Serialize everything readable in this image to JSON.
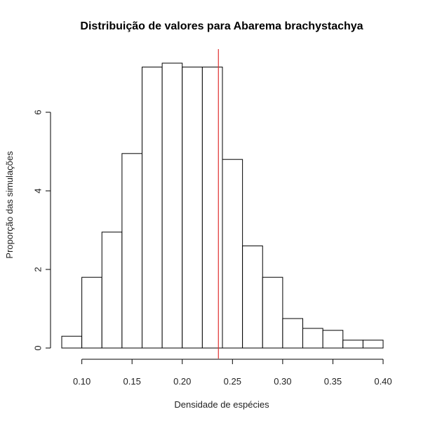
{
  "chart_data": {
    "type": "bar",
    "subtype": "histogram",
    "title": "Distribuição de valores para Abarema brachystachya",
    "xlabel": "Densidade de espécies",
    "ylabel": "Proporção das simulações",
    "bins": [
      {
        "x0": 0.08,
        "x1": 0.1,
        "value": 0.3
      },
      {
        "x0": 0.1,
        "x1": 0.12,
        "value": 1.8
      },
      {
        "x0": 0.12,
        "x1": 0.14,
        "value": 2.95
      },
      {
        "x0": 0.14,
        "x1": 0.16,
        "value": 4.95
      },
      {
        "x0": 0.16,
        "x1": 0.18,
        "value": 7.15
      },
      {
        "x0": 0.18,
        "x1": 0.2,
        "value": 7.25
      },
      {
        "x0": 0.2,
        "x1": 0.22,
        "value": 7.15
      },
      {
        "x0": 0.22,
        "x1": 0.24,
        "value": 7.15
      },
      {
        "x0": 0.24,
        "x1": 0.26,
        "value": 4.8
      },
      {
        "x0": 0.26,
        "x1": 0.28,
        "value": 2.6
      },
      {
        "x0": 0.28,
        "x1": 0.3,
        "value": 1.8
      },
      {
        "x0": 0.3,
        "x1": 0.32,
        "value": 0.75
      },
      {
        "x0": 0.32,
        "x1": 0.34,
        "value": 0.5
      },
      {
        "x0": 0.34,
        "x1": 0.36,
        "value": 0.45
      },
      {
        "x0": 0.36,
        "x1": 0.38,
        "value": 0.2
      },
      {
        "x0": 0.38,
        "x1": 0.4,
        "value": 0.2
      }
    ],
    "reference_line": {
      "x": 0.236,
      "color": "#e03030"
    },
    "xticks": [
      "0.10",
      "0.15",
      "0.20",
      "0.25",
      "0.30",
      "0.35",
      "0.40"
    ],
    "yticks": [
      "0",
      "2",
      "4",
      "6"
    ],
    "xlim": [
      0.08,
      0.4
    ],
    "ylim": [
      0,
      7.6
    ],
    "bar_fill": "#ffffff",
    "bar_stroke": "#000000",
    "grid": false,
    "legend": "none"
  }
}
